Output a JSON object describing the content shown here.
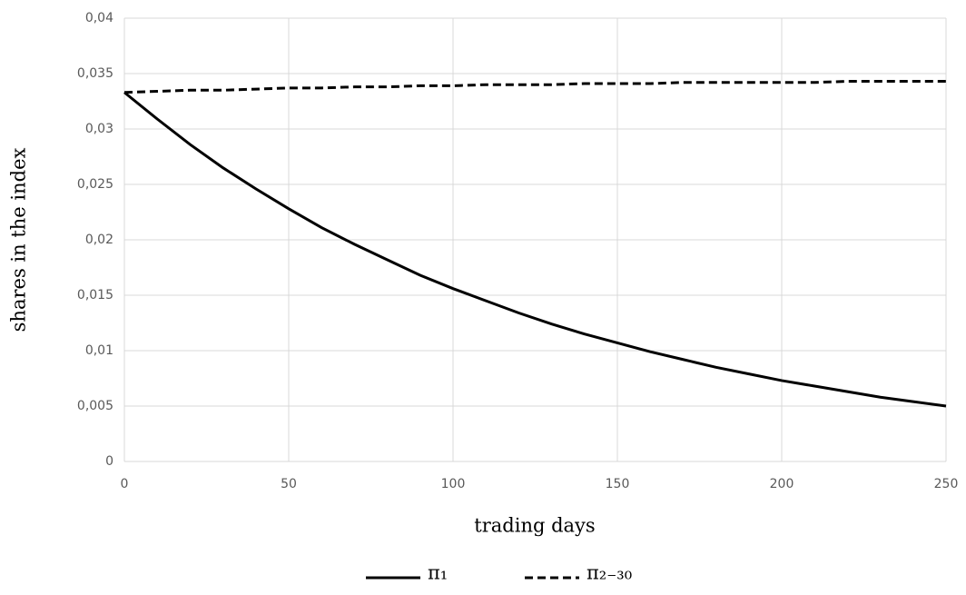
{
  "chart_data": {
    "type": "line",
    "xlabel": "trading days",
    "ylabel": "shares in the index",
    "x": [
      0,
      10,
      20,
      30,
      40,
      50,
      60,
      70,
      80,
      90,
      100,
      110,
      120,
      130,
      140,
      150,
      160,
      170,
      180,
      190,
      200,
      210,
      220,
      230,
      240,
      250
    ],
    "series": [
      {
        "name": "π₁",
        "color": "#000000",
        "dash": false,
        "values": [
          0.0333,
          0.0309,
          0.0286,
          0.0265,
          0.0246,
          0.0228,
          0.0211,
          0.0196,
          0.0182,
          0.0168,
          0.0156,
          0.0145,
          0.0134,
          0.0124,
          0.0115,
          0.0107,
          0.0099,
          0.0092,
          0.0085,
          0.0079,
          0.0073,
          0.0068,
          0.0063,
          0.0058,
          0.0054,
          0.005
        ]
      },
      {
        "name": "π₂₋₃₀",
        "color": "#000000",
        "dash": true,
        "values": [
          0.0333,
          0.0334,
          0.0335,
          0.0335,
          0.0336,
          0.0337,
          0.0337,
          0.0338,
          0.0338,
          0.0339,
          0.0339,
          0.034,
          0.034,
          0.034,
          0.0341,
          0.0341,
          0.0341,
          0.0342,
          0.0342,
          0.0342,
          0.0342,
          0.0342,
          0.0343,
          0.0343,
          0.0343,
          0.0343
        ]
      }
    ],
    "xlim": [
      0,
      250
    ],
    "xticks": [
      0,
      50,
      100,
      150,
      200,
      250
    ],
    "ylim": [
      0,
      0.04
    ],
    "yticks": [
      0,
      {
        "value": 0.005,
        "label": "0,005"
      },
      {
        "value": 0.01,
        "label": "0,01"
      },
      {
        "value": 0.015,
        "label": "0,015"
      },
      {
        "value": 0.02,
        "label": "0,02"
      },
      {
        "value": 0.025,
        "label": "0,025"
      },
      {
        "value": 0.03,
        "label": "0,03"
      },
      {
        "value": 0.035,
        "label": "0,035"
      },
      {
        "value": 0.04,
        "label": "0,04"
      }
    ],
    "grid": true,
    "legend": "bottom"
  }
}
